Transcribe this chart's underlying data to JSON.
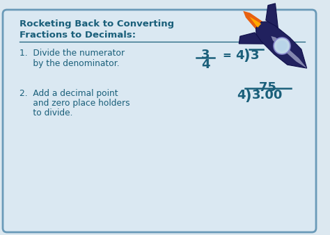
{
  "bg_color": "#dce8f0",
  "card_color": "#dae8f2",
  "border_color": "#6a9ab8",
  "text_color": "#1a5f7a",
  "title_line1": "Rocketing Back to Converting",
  "title_line2": "Fractions to Decimals:",
  "item1_line1": "1.  Divide the numerator",
  "item1_line2": "     by the denominator.",
  "item2_line1": "2.  Add a decimal point",
  "item2_line2": "     and zero place holders",
  "item2_line3": "     to divide.",
  "title_fontsize": 9.5,
  "body_fontsize": 8.8,
  "math_fontsize": 11,
  "rocket_body_color": "#21215e",
  "rocket_highlight_color": "#2e2e8a",
  "rocket_window_color": "#c0d8e8",
  "rocket_flame_color": "#e86010",
  "rocket_flame_inner": "#ffaa00"
}
